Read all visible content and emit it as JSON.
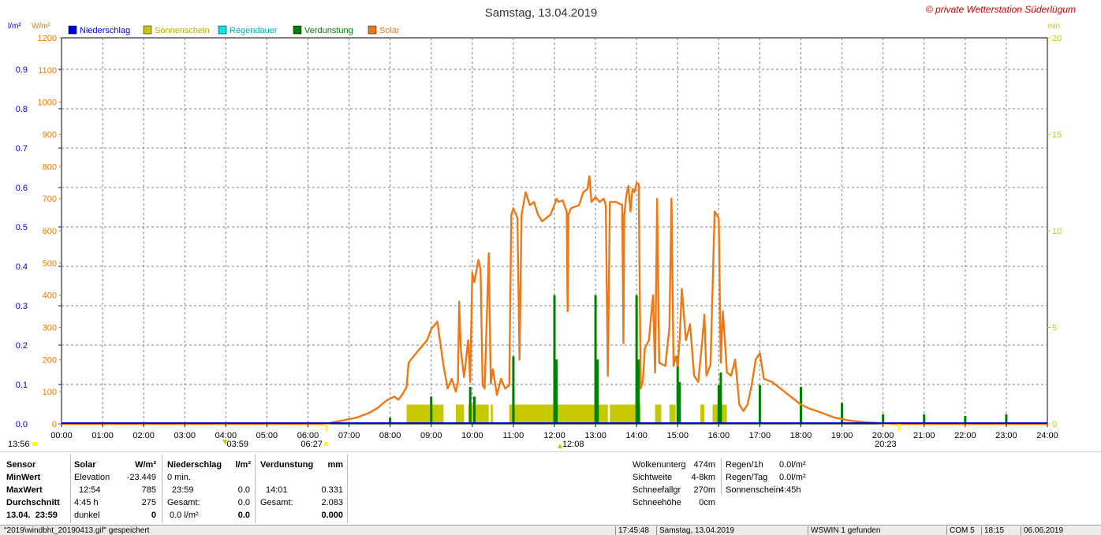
{
  "chart_data": {
    "type": "line",
    "title": "Samstag, 13.04.2019",
    "watermark": "© private Wetterstation Süderlügum",
    "left_axis_1": {
      "unit": "l/m²",
      "ticks": [
        "0.0",
        "0.1",
        "0.2",
        "0.3",
        "0.4",
        "0.5",
        "0.6",
        "0.7",
        "0.8",
        "0.9"
      ],
      "range": [
        0,
        0.98
      ],
      "color": "#0000c8"
    },
    "left_axis_2": {
      "unit": "W/m²",
      "ticks": [
        "0",
        "100",
        "200",
        "300",
        "400",
        "500",
        "600",
        "700",
        "800",
        "900",
        "1000",
        "1100",
        "1200"
      ],
      "range": [
        0,
        1200
      ],
      "color": "#e8780a"
    },
    "right_axis": {
      "unit": "min",
      "ticks": [
        "0",
        "5",
        "10",
        "15",
        "20"
      ],
      "range": [
        0,
        20
      ],
      "color": "#c8c800"
    },
    "x_ticks": [
      "00:00",
      "01:00",
      "02:00",
      "03:00",
      "04:00",
      "05:00",
      "06:00",
      "07:00",
      "08:00",
      "09:00",
      "10:00",
      "11:00",
      "12:00",
      "13:00",
      "14:00",
      "15:00",
      "16:00",
      "17:00",
      "18:00",
      "19:00",
      "20:00",
      "21:00",
      "22:00",
      "23:00",
      "24:00"
    ],
    "x_range_hours": [
      0,
      24
    ],
    "grid": true,
    "legend_position": "top-left",
    "legend": [
      {
        "name": "Niederschlag",
        "color": "#0000e6"
      },
      {
        "name": "Sonnenschein",
        "color": "#c8c800"
      },
      {
        "name": "Regendauer",
        "color": "#00e6e6"
      },
      {
        "name": "Verdunstung",
        "color": "#008000"
      },
      {
        "name": "Solar",
        "color": "#f07814"
      }
    ],
    "markers": {
      "moonrise_label": "13:56",
      "moonset_label": "03:59",
      "sunrise_label": "06:27",
      "noon_label": "12:08",
      "sunset_label": "20:23"
    },
    "series": [
      {
        "name": "Solar",
        "color": "#f07814",
        "points": [
          [
            0,
            0
          ],
          [
            6.45,
            0
          ],
          [
            6.6,
            5
          ],
          [
            6.9,
            12
          ],
          [
            7.2,
            20
          ],
          [
            7.5,
            35
          ],
          [
            7.7,
            50
          ],
          [
            7.9,
            72
          ],
          [
            8.1,
            85
          ],
          [
            8.2,
            75
          ],
          [
            8.3,
            92
          ],
          [
            8.4,
            115
          ],
          [
            8.45,
            190
          ],
          [
            8.6,
            215
          ],
          [
            8.9,
            260
          ],
          [
            9.0,
            295
          ],
          [
            9.1,
            310
          ],
          [
            9.15,
            318
          ],
          [
            9.2,
            270
          ],
          [
            9.3,
            180
          ],
          [
            9.4,
            110
          ],
          [
            9.5,
            140
          ],
          [
            9.6,
            100
          ],
          [
            9.65,
            130
          ],
          [
            9.68,
            380
          ],
          [
            9.72,
            230
          ],
          [
            9.8,
            145
          ],
          [
            9.9,
            260
          ],
          [
            9.95,
            130
          ],
          [
            10.0,
            470
          ],
          [
            10.05,
            440
          ],
          [
            10.15,
            510
          ],
          [
            10.2,
            480
          ],
          [
            10.25,
            120
          ],
          [
            10.3,
            110
          ],
          [
            10.4,
            530
          ],
          [
            10.45,
            125
          ],
          [
            10.5,
            170
          ],
          [
            10.6,
            90
          ],
          [
            10.7,
            140
          ],
          [
            10.8,
            110
          ],
          [
            10.9,
            120
          ],
          [
            10.95,
            650
          ],
          [
            11.0,
            670
          ],
          [
            11.1,
            640
          ],
          [
            11.15,
            200
          ],
          [
            11.2,
            650
          ],
          [
            11.3,
            720
          ],
          [
            11.4,
            680
          ],
          [
            11.5,
            690
          ],
          [
            11.6,
            650
          ],
          [
            11.7,
            630
          ],
          [
            11.9,
            650
          ],
          [
            12.0,
            680
          ],
          [
            12.05,
            700
          ],
          [
            12.1,
            690
          ],
          [
            12.2,
            695
          ],
          [
            12.3,
            660
          ],
          [
            12.32,
            350
          ],
          [
            12.34,
            650
          ],
          [
            12.4,
            670
          ],
          [
            12.6,
            680
          ],
          [
            12.7,
            720
          ],
          [
            12.8,
            730
          ],
          [
            12.85,
            770
          ],
          [
            12.9,
            690
          ],
          [
            13.0,
            705
          ],
          [
            13.1,
            690
          ],
          [
            13.2,
            700
          ],
          [
            13.25,
            680
          ],
          [
            13.3,
            150
          ],
          [
            13.35,
            690
          ],
          [
            13.5,
            690
          ],
          [
            13.65,
            680
          ],
          [
            13.68,
            250
          ],
          [
            13.7,
            650
          ],
          [
            13.75,
            710
          ],
          [
            13.8,
            740
          ],
          [
            13.85,
            660
          ],
          [
            13.9,
            730
          ],
          [
            13.95,
            720
          ],
          [
            14.0,
            750
          ],
          [
            14.05,
            745
          ],
          [
            14.1,
            110
          ],
          [
            14.15,
            130
          ],
          [
            14.2,
            235
          ],
          [
            14.3,
            260
          ],
          [
            14.4,
            400
          ],
          [
            14.45,
            160
          ],
          [
            14.5,
            700
          ],
          [
            14.55,
            190
          ],
          [
            14.7,
            180
          ],
          [
            14.8,
            300
          ],
          [
            14.85,
            700
          ],
          [
            14.9,
            180
          ],
          [
            14.95,
            210
          ],
          [
            15.0,
            180
          ],
          [
            15.05,
            270
          ],
          [
            15.1,
            420
          ],
          [
            15.2,
            260
          ],
          [
            15.3,
            310
          ],
          [
            15.4,
            150
          ],
          [
            15.5,
            130
          ],
          [
            15.6,
            260
          ],
          [
            15.65,
            340
          ],
          [
            15.7,
            150
          ],
          [
            15.8,
            185
          ],
          [
            15.9,
            660
          ],
          [
            16.0,
            640
          ],
          [
            16.05,
            190
          ],
          [
            16.1,
            350
          ],
          [
            16.15,
            260
          ],
          [
            16.2,
            160
          ],
          [
            16.3,
            150
          ],
          [
            16.4,
            200
          ],
          [
            16.5,
            60
          ],
          [
            16.6,
            40
          ],
          [
            16.7,
            60
          ],
          [
            16.8,
            120
          ],
          [
            16.9,
            200
          ],
          [
            17.0,
            220
          ],
          [
            17.1,
            140
          ],
          [
            17.3,
            130
          ],
          [
            17.5,
            110
          ],
          [
            17.8,
            80
          ],
          [
            18.0,
            60
          ],
          [
            18.2,
            48
          ],
          [
            18.5,
            35
          ],
          [
            18.8,
            20
          ],
          [
            19.2,
            10
          ],
          [
            19.6,
            5
          ],
          [
            20.0,
            2
          ],
          [
            20.3,
            0
          ],
          [
            24,
            0
          ]
        ]
      },
      {
        "name": "Sonnenschein",
        "color": "#c8c800",
        "unit": "min",
        "ranges": [
          [
            8.4,
            9.3
          ],
          [
            9.6,
            9.8
          ],
          [
            9.9,
            10.4
          ],
          [
            10.45,
            10.5
          ],
          [
            10.9,
            13.3
          ],
          [
            13.35,
            14.1
          ],
          [
            14.45,
            14.6
          ],
          [
            14.8,
            14.95
          ],
          [
            15.55,
            15.65
          ],
          [
            15.85,
            16.2
          ]
        ],
        "level": 1.0
      },
      {
        "name": "Verdunstung",
        "color": "#008000",
        "bars": [
          [
            8.0,
            20
          ],
          [
            9.0,
            85
          ],
          [
            9.95,
            115
          ],
          [
            10.05,
            85
          ],
          [
            11.0,
            210
          ],
          [
            11.0,
            110
          ],
          [
            12.0,
            400
          ],
          [
            12.05,
            200
          ],
          [
            13.0,
            400
          ],
          [
            13.05,
            200
          ],
          [
            14.0,
            400
          ],
          [
            14.05,
            200
          ],
          [
            15.0,
            210
          ],
          [
            15.05,
            130
          ],
          [
            16.0,
            120
          ],
          [
            16.05,
            160
          ],
          [
            17.0,
            120
          ],
          [
            18.0,
            115
          ],
          [
            19.0,
            65
          ],
          [
            20.0,
            30
          ],
          [
            21.0,
            30
          ],
          [
            22.0,
            25
          ],
          [
            23.0,
            30
          ]
        ]
      },
      {
        "name": "Niederschlag",
        "color": "#0000e6",
        "values": [
          0
        ]
      }
    ]
  },
  "stats": {
    "sensor": {
      "header": "Sensor",
      "rows": [
        "MinWert",
        "MaxWert",
        "Durchschnitt",
        "13.04.  23:59"
      ]
    },
    "solar": {
      "header": "Solar",
      "unit": "W/m²",
      "c1": [
        "Elevation",
        "12:54",
        "4:45 h",
        "dunkel"
      ],
      "c2": [
        "-23.449",
        "785",
        "275",
        "0"
      ]
    },
    "niederschlag": {
      "header": "Niederschlag",
      "unit": "l/m²",
      "c1": [
        "0 min.",
        "23:59",
        "Gesamt:",
        "0.0 l/m²"
      ],
      "c2": [
        "",
        "0.0",
        "0.0",
        "0.0"
      ]
    },
    "verdunstung": {
      "header": "Verdunstung",
      "unit": "mm",
      "c1": [
        "",
        "14:01",
        "Gesamt:",
        ""
      ],
      "c2": [
        "",
        "0.331",
        "2.083",
        "0.000"
      ]
    },
    "misc1": {
      "labels": [
        "Wolkenunterg",
        "Sichtweite",
        "Schneefallgr",
        "Schneehöhe"
      ],
      "values": [
        "474m",
        "4-8km",
        "270m",
        "0cm"
      ]
    },
    "misc2": {
      "labels": [
        "Regen/1h",
        "Regen/Tag",
        "Sonnenschein"
      ],
      "values": [
        "0.0l/m²",
        "0.0l/m²",
        "4:45h"
      ]
    }
  },
  "statusbar": {
    "cells": [
      "\"2019\\windbht_20190413.gif\"  gespeichert",
      "17:45:48",
      "Samstag, 13.04.2019",
      "WSWIN 1 gefunden",
      "COM 5",
      "18:15",
      "06.06.2019"
    ]
  }
}
